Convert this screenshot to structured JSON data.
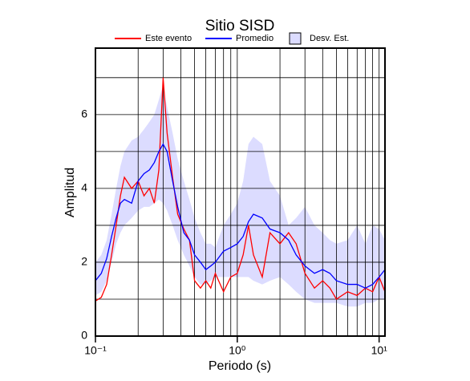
{
  "chart_data": {
    "type": "line",
    "title": "Sitio SISD",
    "xlabel": "Periodo (s)",
    "ylabel": "Amplitud",
    "xscale": "log",
    "x": [
      0.1,
      0.11,
      0.12,
      0.13,
      0.14,
      0.15,
      0.16,
      0.18,
      0.2,
      0.22,
      0.24,
      0.26,
      0.28,
      0.3,
      0.32,
      0.35,
      0.38,
      0.42,
      0.46,
      0.5,
      0.55,
      0.6,
      0.65,
      0.7,
      0.8,
      0.9,
      1.0,
      1.1,
      1.2,
      1.3,
      1.5,
      1.7,
      2.0,
      2.3,
      2.6,
      3.0,
      3.5,
      4,
      4.5,
      5,
      6,
      7,
      8,
      9,
      10,
      11
    ],
    "band": {
      "name": "Desv. Est.",
      "color": "#dcdcff",
      "upper": [
        2.0,
        2.2,
        2.6,
        3.3,
        4.0,
        4.6,
        5.0,
        5.3,
        5.4,
        5.6,
        5.8,
        6.0,
        6.4,
        6.8,
        6.2,
        5.5,
        4.8,
        4.2,
        3.7,
        3.2,
        2.8,
        2.5,
        2.5,
        2.4,
        3.0,
        3.3,
        3.6,
        4.2,
        5.2,
        5.4,
        5.2,
        4.2,
        3.8,
        3.0,
        3.2,
        3.5,
        3.0,
        2.8,
        2.6,
        2.5,
        2.6,
        3.0,
        2.5,
        3.0,
        2.9,
        2.6
      ],
      "lower": [
        1.1,
        1.2,
        1.5,
        2.0,
        2.5,
        2.8,
        3.0,
        3.2,
        3.4,
        3.5,
        3.5,
        3.6,
        3.7,
        3.6,
        3.4,
        3.0,
        2.6,
        2.2,
        1.9,
        1.6,
        1.4,
        1.4,
        1.5,
        1.6,
        1.6,
        1.6,
        1.6,
        1.6,
        1.6,
        1.5,
        1.4,
        1.5,
        1.6,
        1.4,
        1.2,
        1.0,
        0.9,
        0.9,
        0.9,
        0.9,
        0.8,
        0.8,
        0.9,
        0.9,
        1.0,
        1.0
      ]
    },
    "series": [
      {
        "name": "Este evento",
        "color": "#ff0000",
        "values": [
          0.95,
          1.05,
          1.4,
          2.2,
          3.0,
          3.8,
          4.3,
          4.0,
          4.2,
          3.8,
          4.0,
          3.6,
          4.5,
          7.0,
          5.5,
          4.3,
          3.3,
          2.9,
          2.6,
          1.5,
          1.3,
          1.5,
          1.3,
          1.7,
          1.2,
          1.6,
          1.7,
          2.2,
          3.0,
          2.2,
          1.6,
          2.8,
          2.5,
          2.8,
          2.5,
          1.7,
          1.3,
          1.5,
          1.3,
          1.0,
          1.2,
          1.1,
          1.3,
          1.2,
          1.6,
          1.2
        ]
      },
      {
        "name": "Promedio",
        "color": "#0000ff",
        "values": [
          1.5,
          1.7,
          2.1,
          2.7,
          3.2,
          3.6,
          3.7,
          3.6,
          4.2,
          4.4,
          4.5,
          4.7,
          5.0,
          5.2,
          5.0,
          4.2,
          3.5,
          2.8,
          2.6,
          2.2,
          2.0,
          1.8,
          1.9,
          2.0,
          2.3,
          2.4,
          2.5,
          2.7,
          3.1,
          3.3,
          3.2,
          2.9,
          2.8,
          2.6,
          2.2,
          1.9,
          1.7,
          1.8,
          1.7,
          1.5,
          1.4,
          1.4,
          1.3,
          1.4,
          1.6,
          1.8
        ]
      }
    ],
    "xlim": [
      0.1,
      11
    ],
    "ylim": [
      0,
      7.8
    ],
    "xticks": [
      {
        "value": 0.1,
        "label": "10⁻¹"
      },
      {
        "value": 1,
        "label": "10⁰"
      },
      {
        "value": 10,
        "label": "10¹"
      }
    ],
    "xminor": [
      0.2,
      0.3,
      0.4,
      0.5,
      0.6,
      0.7,
      0.8,
      0.9,
      2,
      3,
      4,
      5,
      6,
      7,
      8,
      9
    ],
    "yticks": [
      0,
      2,
      4,
      6
    ],
    "yminor": [
      1,
      3,
      5,
      7
    ],
    "grid": true
  }
}
